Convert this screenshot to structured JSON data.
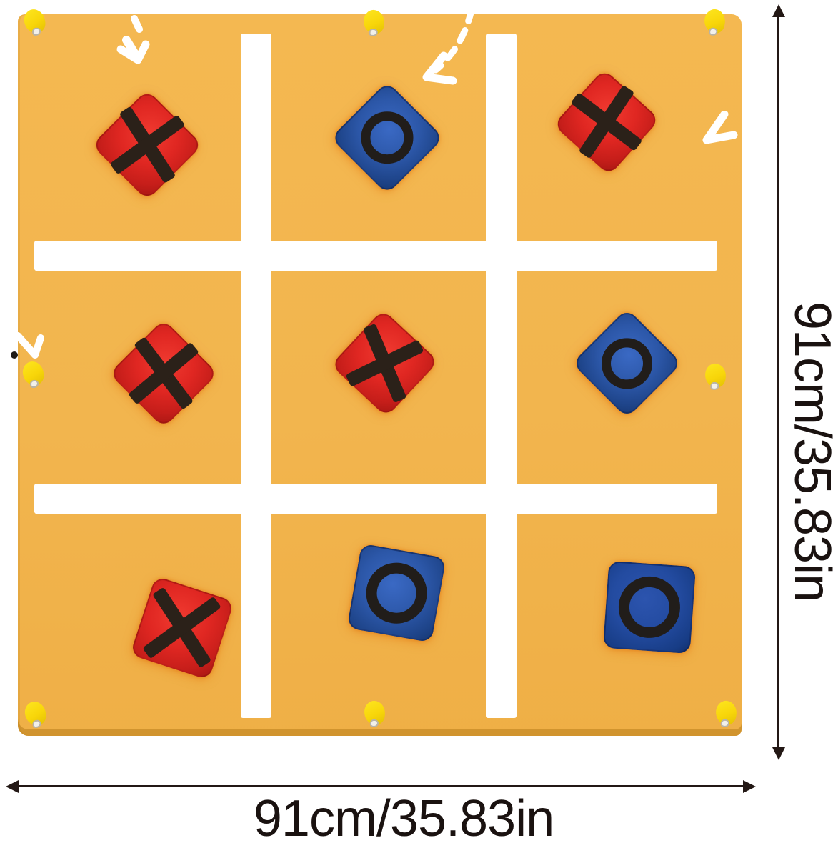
{
  "product": {
    "description": "tic-tac-toe toss game mat",
    "board": {
      "rows": 3,
      "cols": 3,
      "cells": [
        "X",
        "O",
        "X",
        "X",
        "X",
        "O",
        "X",
        "O",
        "O"
      ]
    },
    "stake_tab_count": 8
  },
  "dimensions": {
    "height_label": "91cm/35.83in",
    "width_label": "91cm/35.83in"
  },
  "icons": [
    "toss-arrow-icon",
    "dashed-toss-arrow-icon",
    "stake-loop-icon",
    "dimension-arrow-icon"
  ],
  "colors": {
    "mat": "#F2B54E",
    "grid_line": "#FFFFFF",
    "x_bag": "#DD2A22",
    "o_bag": "#2C57A8",
    "mark": "#2B2119",
    "stake_tab": "#F8D60A",
    "dimension": "#231815",
    "arrow": "#FFFFFF"
  }
}
